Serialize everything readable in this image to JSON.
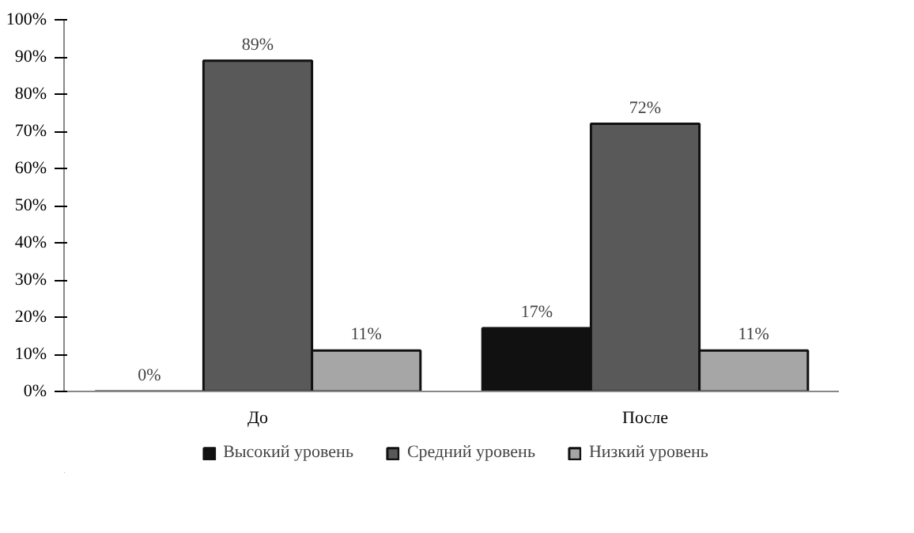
{
  "chart_data": {
    "type": "bar",
    "categories": [
      "До",
      "После"
    ],
    "series": [
      {
        "name": "Высокий уровень",
        "color": "#111111",
        "values": [
          0,
          17
        ],
        "value_labels": [
          "0%",
          "17%"
        ]
      },
      {
        "name": "Средний уровень",
        "color": "#595959",
        "values": [
          89,
          72
        ],
        "value_labels": [
          "89%",
          "72%"
        ]
      },
      {
        "name": "Низкий уровень",
        "color": "#a6a6a6",
        "values": [
          11,
          11
        ],
        "value_labels": [
          "11%",
          "11%"
        ]
      }
    ],
    "ylim": [
      0,
      100
    ],
    "yticks": [
      {
        "value": 0,
        "label": "0%"
      },
      {
        "value": 10,
        "label": "10%"
      },
      {
        "value": 20,
        "label": "20%"
      },
      {
        "value": 30,
        "label": "30%"
      },
      {
        "value": 40,
        "label": "40%"
      },
      {
        "value": 50,
        "label": "50%"
      },
      {
        "value": 60,
        "label": "60%"
      },
      {
        "value": 70,
        "label": "70%"
      },
      {
        "value": 80,
        "label": "80%"
      },
      {
        "value": 90,
        "label": "90%"
      },
      {
        "value": 100,
        "label": "100%"
      }
    ],
    "grid": false,
    "legend": "bottom"
  }
}
